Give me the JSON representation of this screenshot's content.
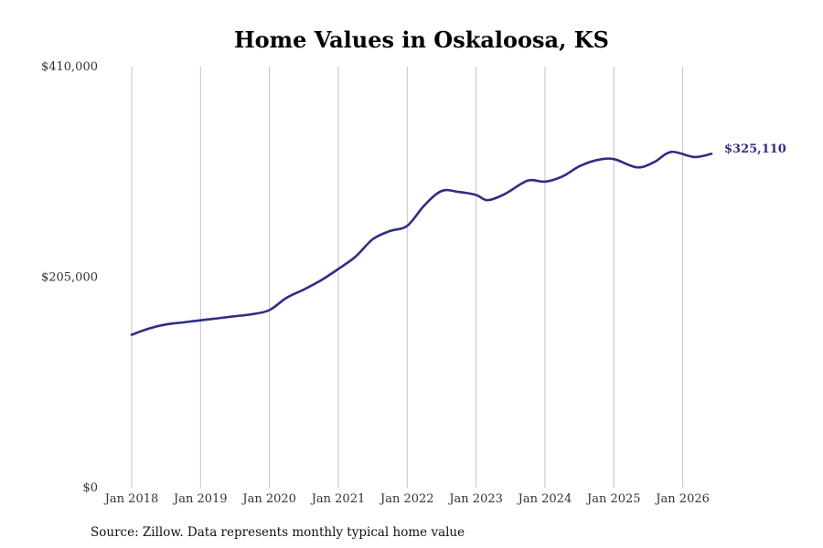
{
  "chart_data": {
    "type": "line",
    "title": "Home Values in Oskaloosa, KS",
    "xlabel": "",
    "ylabel": "",
    "source": "Source: Zillow. Data represents monthly typical home value",
    "ylim": [
      0,
      410000
    ],
    "xlim": [
      "2018-01",
      "2026-06"
    ],
    "y_ticks": [
      {
        "value": 0,
        "label": "$0"
      },
      {
        "value": 205000,
        "label": "$205,000"
      },
      {
        "value": 410000,
        "label": "$410,000"
      }
    ],
    "x_ticks": [
      {
        "date": "2018-01",
        "label": "Jan 2018"
      },
      {
        "date": "2019-01",
        "label": "Jan 2019"
      },
      {
        "date": "2020-01",
        "label": "Jan 2020"
      },
      {
        "date": "2021-01",
        "label": "Jan 2021"
      },
      {
        "date": "2022-01",
        "label": "Jan 2022"
      },
      {
        "date": "2023-01",
        "label": "Jan 2023"
      },
      {
        "date": "2024-01",
        "label": "Jan 2024"
      },
      {
        "date": "2025-01",
        "label": "Jan 2025"
      },
      {
        "date": "2026-01",
        "label": "Jan 2026"
      }
    ],
    "grid": "vertical",
    "colors": {
      "line": "#2e2e85",
      "grid": "#c4c4c4"
    },
    "end_label": "$325,110",
    "series": [
      {
        "points": [
          [
            "2018-01",
            149000
          ],
          [
            "2018-04",
            155000
          ],
          [
            "2018-07",
            159000
          ],
          [
            "2018-10",
            161000
          ],
          [
            "2019-01",
            163000
          ],
          [
            "2019-04",
            165000
          ],
          [
            "2019-07",
            167000
          ],
          [
            "2019-10",
            169000
          ],
          [
            "2020-01",
            173000
          ],
          [
            "2020-04",
            185000
          ],
          [
            "2020-07",
            193000
          ],
          [
            "2020-10",
            202000
          ],
          [
            "2021-01",
            213000
          ],
          [
            "2021-04",
            225000
          ],
          [
            "2021-07",
            242000
          ],
          [
            "2021-10",
            250000
          ],
          [
            "2022-01",
            255000
          ],
          [
            "2022-04",
            275000
          ],
          [
            "2022-07",
            289000
          ],
          [
            "2022-10",
            288000
          ],
          [
            "2023-01",
            285000
          ],
          [
            "2023-03",
            280000
          ],
          [
            "2023-06",
            286000
          ],
          [
            "2023-10",
            299000
          ],
          [
            "2024-01",
            298000
          ],
          [
            "2024-04",
            303000
          ],
          [
            "2024-07",
            313000
          ],
          [
            "2024-10",
            319000
          ],
          [
            "2025-01",
            320000
          ],
          [
            "2025-05",
            312000
          ],
          [
            "2025-08",
            317000
          ],
          [
            "2025-11",
            327000
          ],
          [
            "2026-03",
            322000
          ],
          [
            "2026-06",
            325110
          ]
        ]
      }
    ]
  }
}
